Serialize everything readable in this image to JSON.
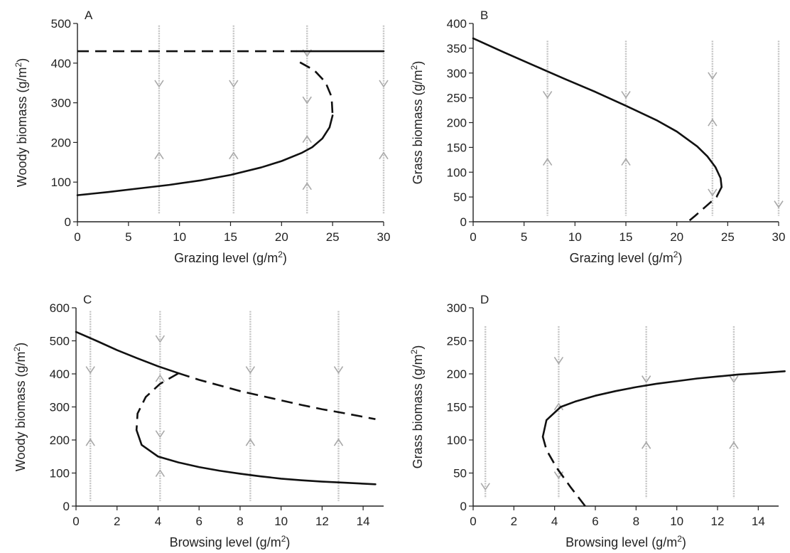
{
  "chart_data": [
    {
      "panel": "A",
      "type": "line",
      "xlabel": "Grazing level",
      "xunit": "(g/m",
      "ylabel": "Woody biomass",
      "yunit": "(g/m",
      "xlim": [
        0,
        30
      ],
      "ylim": [
        0,
        500
      ],
      "xticks": [
        0,
        5,
        10,
        15,
        20,
        25,
        30
      ],
      "yticks": [
        0,
        100,
        200,
        300,
        400,
        500
      ],
      "series": [
        {
          "style": "dashed",
          "points": [
            [
              0,
              430
            ],
            [
              21.5,
              430
            ]
          ]
        },
        {
          "style": "solid",
          "points": [
            [
              21.5,
              430
            ],
            [
              30,
              430
            ]
          ]
        },
        {
          "style": "dashed",
          "points": [
            [
              21.8,
              402
            ],
            [
              23.2,
              382
            ],
            [
              24.3,
              352
            ],
            [
              24.9,
              315
            ],
            [
              25.0,
              268
            ]
          ]
        },
        {
          "style": "solid",
          "points": [
            [
              0,
              67
            ],
            [
              3,
              75
            ],
            [
              6,
              84
            ],
            [
              9,
              93
            ],
            [
              12,
              104
            ],
            [
              15,
              118
            ],
            [
              18,
              137
            ],
            [
              20,
              153
            ],
            [
              22,
              174
            ],
            [
              23,
              188
            ],
            [
              24,
              210
            ],
            [
              24.7,
              238
            ],
            [
              25.0,
              268
            ]
          ]
        }
      ],
      "arrows": [
        {
          "x": 8,
          "from": 495,
          "to": 20,
          "dir": [
            -1,
            1
          ]
        },
        {
          "x": 15.3,
          "from": 495,
          "to": 20,
          "dir": [
            -1,
            1
          ]
        },
        {
          "x": 22.5,
          "from": 495,
          "to": 20,
          "dir": [
            -1,
            -1,
            1,
            1
          ]
        },
        {
          "x": 30,
          "from": 495,
          "to": 20,
          "dir": [
            -1,
            1
          ]
        }
      ]
    },
    {
      "panel": "B",
      "type": "line",
      "xlabel": "Grazing level",
      "xunit": "(g/m",
      "ylabel": "Grass biomass",
      "yunit": "(g/m",
      "xlim": [
        0,
        30
      ],
      "ylim": [
        0,
        400
      ],
      "xticks": [
        0,
        5,
        10,
        15,
        20,
        25,
        30
      ],
      "yticks": [
        0,
        50,
        100,
        150,
        200,
        250,
        300,
        350,
        400
      ],
      "series": [
        {
          "style": "solid",
          "points": [
            [
              0,
              370
            ],
            [
              3,
              342
            ],
            [
              6,
              315
            ],
            [
              9,
              288
            ],
            [
              12,
              262
            ],
            [
              15,
              234
            ],
            [
              18,
              205
            ],
            [
              20,
              182
            ],
            [
              22,
              152
            ],
            [
              23,
              132
            ],
            [
              23.8,
              110
            ],
            [
              24.3,
              88
            ],
            [
              24.4,
              70
            ]
          ]
        },
        {
          "style": "dashed",
          "points": [
            [
              24.4,
              70
            ],
            [
              23.9,
              50
            ],
            [
              22.8,
              30
            ],
            [
              21.8,
              12
            ],
            [
              21.1,
              0
            ]
          ]
        }
      ],
      "arrows": [
        {
          "x": 7.3,
          "from": 365,
          "to": 12,
          "dir": [
            -1,
            1
          ]
        },
        {
          "x": 15,
          "from": 365,
          "to": 12,
          "dir": [
            -1,
            1
          ]
        },
        {
          "x": 23.5,
          "from": 365,
          "to": 12,
          "dir": [
            -1,
            1,
            -1
          ]
        },
        {
          "x": 30,
          "from": 365,
          "to": 12,
          "dir": [
            -1
          ]
        }
      ]
    },
    {
      "panel": "C",
      "type": "line",
      "xlabel": "Browsing level",
      "xunit": "(g/m",
      "ylabel": "Woody biomass",
      "yunit": "(g/m",
      "xlim": [
        0,
        15
      ],
      "ylim": [
        0,
        600
      ],
      "xticks": [
        0,
        2,
        4,
        6,
        8,
        10,
        12,
        14
      ],
      "yticks": [
        0,
        100,
        200,
        300,
        400,
        500,
        600
      ],
      "series": [
        {
          "style": "solid",
          "points": [
            [
              0,
              527
            ],
            [
              1,
              500
            ],
            [
              2,
              472
            ],
            [
              3,
              447
            ],
            [
              4,
              423
            ],
            [
              5,
              402
            ]
          ]
        },
        {
          "style": "dashed",
          "points": [
            [
              5,
              402
            ],
            [
              6,
              382
            ],
            [
              7,
              365
            ],
            [
              8,
              348
            ],
            [
              9,
              334
            ],
            [
              10,
              320
            ],
            [
              11,
              306
            ],
            [
              12,
              293
            ],
            [
              13,
              282
            ],
            [
              14.6,
              263
            ]
          ]
        },
        {
          "style": "dashed",
          "points": [
            [
              5,
              402
            ],
            [
              4.1,
              370
            ],
            [
              3.4,
              330
            ],
            [
              3.0,
              280
            ],
            [
              2.95,
              230
            ]
          ]
        },
        {
          "style": "solid",
          "points": [
            [
              2.95,
              230
            ],
            [
              3.2,
              185
            ],
            [
              4,
              150
            ],
            [
              5,
              132
            ],
            [
              6,
              118
            ],
            [
              7,
              107
            ],
            [
              8,
              98
            ],
            [
              9,
              90
            ],
            [
              10,
              83
            ],
            [
              11,
              78
            ],
            [
              12,
              74
            ],
            [
              13,
              71
            ],
            [
              14.6,
              66
            ]
          ]
        }
      ],
      "arrows": [
        {
          "x": 0.7,
          "from": 590,
          "to": 15,
          "dir": [
            -1,
            1
          ]
        },
        {
          "x": 4.1,
          "from": 590,
          "to": 15,
          "dir": [
            -1,
            1,
            -1,
            1
          ]
        },
        {
          "x": 8.5,
          "from": 590,
          "to": 15,
          "dir": [
            -1,
            1
          ]
        },
        {
          "x": 12.8,
          "from": 590,
          "to": 15,
          "dir": [
            -1,
            1
          ]
        }
      ]
    },
    {
      "panel": "D",
      "type": "line",
      "xlabel": "Browsing level",
      "xunit": "(g/m",
      "ylabel": "Grass biomass",
      "yunit": "(g/m",
      "xlim": [
        0,
        15
      ],
      "ylim": [
        0,
        300
      ],
      "xticks": [
        0,
        2,
        4,
        6,
        8,
        10,
        12,
        14
      ],
      "yticks": [
        0,
        50,
        100,
        150,
        200,
        250,
        300
      ],
      "series": [
        {
          "style": "dashed",
          "points": [
            [
              5.5,
              0
            ],
            [
              4.8,
              28
            ],
            [
              4.1,
              58
            ],
            [
              3.6,
              85
            ],
            [
              3.42,
              105
            ]
          ]
        },
        {
          "style": "solid",
          "points": [
            [
              3.42,
              105
            ],
            [
              3.6,
              130
            ],
            [
              4.3,
              150
            ],
            [
              5,
              158
            ],
            [
              6,
              167
            ],
            [
              7,
              174
            ],
            [
              8,
              180
            ],
            [
              9,
              185
            ],
            [
              10,
              189
            ],
            [
              11,
              193
            ],
            [
              12,
              196
            ],
            [
              13,
              199
            ],
            [
              14,
              201
            ],
            [
              15.3,
              204
            ]
          ]
        }
      ],
      "arrows": [
        {
          "x": 0.6,
          "from": 272,
          "to": 12,
          "dir": [
            -1
          ]
        },
        {
          "x": 4.2,
          "from": 272,
          "to": 12,
          "dir": [
            -1,
            1,
            -1
          ]
        },
        {
          "x": 8.5,
          "from": 272,
          "to": 12,
          "dir": [
            -1,
            1
          ]
        },
        {
          "x": 12.8,
          "from": 272,
          "to": 12,
          "dir": [
            -1,
            1
          ]
        }
      ]
    }
  ]
}
